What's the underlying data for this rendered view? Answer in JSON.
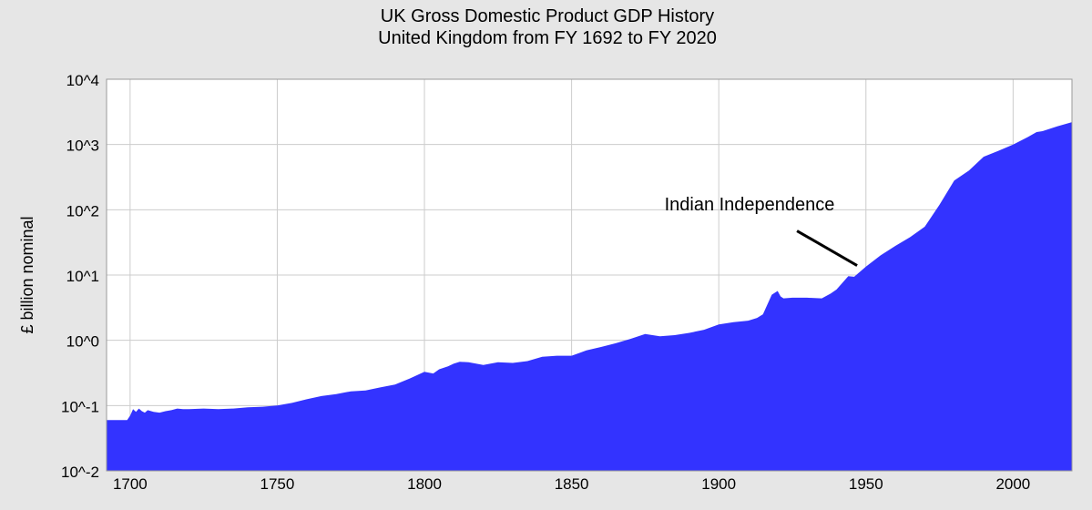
{
  "chart_data": {
    "type": "area",
    "title": "UK Gross Domestic Product GDP History",
    "subtitle": "United Kingdom from FY 1692 to FY 2020",
    "xlabel": "",
    "ylabel": "£ billion nominal",
    "y_scale": "log",
    "xlim": [
      1692,
      2020
    ],
    "ylim": [
      0.01,
      10000
    ],
    "x_ticks": [
      1700,
      1750,
      1800,
      1850,
      1900,
      1950,
      2000
    ],
    "x_tick_labels": [
      "1700",
      "1750",
      "1800",
      "1850",
      "1900",
      "1950",
      "2000"
    ],
    "y_ticks": [
      0.01,
      0.1,
      1,
      10,
      100,
      1000,
      10000
    ],
    "y_tick_labels": [
      "10^-2",
      "10^-1",
      "10^0",
      "10^1",
      "10^2",
      "10^3",
      "10^4"
    ],
    "grid": true,
    "fill_color": "#3333ff",
    "plot_background": "#ffffff",
    "page_background": "#e6e6e6",
    "annotation": {
      "text": "Indian Independence",
      "x": 1947,
      "y": 14
    },
    "series": [
      {
        "x": [
          1692,
          1699,
          1700,
          1701,
          1702,
          1703,
          1704,
          1705,
          1706,
          1708,
          1710,
          1712,
          1714,
          1716,
          1718,
          1720,
          1725,
          1730,
          1735,
          1740,
          1745,
          1750,
          1755,
          1760,
          1765,
          1770,
          1775,
          1780,
          1785,
          1790,
          1795,
          1800,
          1803,
          1805,
          1808,
          1810,
          1812,
          1815,
          1820,
          1825,
          1830,
          1835,
          1840,
          1845,
          1850,
          1855,
          1860,
          1865,
          1870,
          1875,
          1880,
          1885,
          1890,
          1895,
          1900,
          1905,
          1910,
          1913,
          1915,
          1918,
          1920,
          1921,
          1922,
          1925,
          1930,
          1935,
          1938,
          1940,
          1944,
          1946,
          1950,
          1955,
          1960,
          1965,
          1970,
          1975,
          1980,
          1985,
          1990,
          1995,
          2000,
          2005,
          2008,
          2010,
          2015,
          2020
        ],
        "y": [
          0.06,
          0.06,
          0.07,
          0.088,
          0.08,
          0.09,
          0.082,
          0.078,
          0.085,
          0.08,
          0.078,
          0.082,
          0.085,
          0.09,
          0.088,
          0.088,
          0.09,
          0.088,
          0.09,
          0.094,
          0.096,
          0.1,
          0.11,
          0.125,
          0.14,
          0.15,
          0.165,
          0.17,
          0.19,
          0.21,
          0.26,
          0.33,
          0.31,
          0.36,
          0.4,
          0.44,
          0.47,
          0.46,
          0.42,
          0.46,
          0.45,
          0.48,
          0.56,
          0.58,
          0.58,
          0.7,
          0.79,
          0.9,
          1.05,
          1.25,
          1.15,
          1.2,
          1.3,
          1.45,
          1.75,
          1.9,
          2.0,
          2.2,
          2.5,
          5.0,
          5.7,
          4.7,
          4.4,
          4.5,
          4.5,
          4.4,
          5.2,
          6.0,
          9.6,
          9.4,
          13.5,
          20,
          28,
          38,
          55,
          120,
          280,
          400,
          650,
          800,
          1000,
          1300,
          1550,
          1600,
          1900,
          2200
        ]
      }
    ]
  }
}
